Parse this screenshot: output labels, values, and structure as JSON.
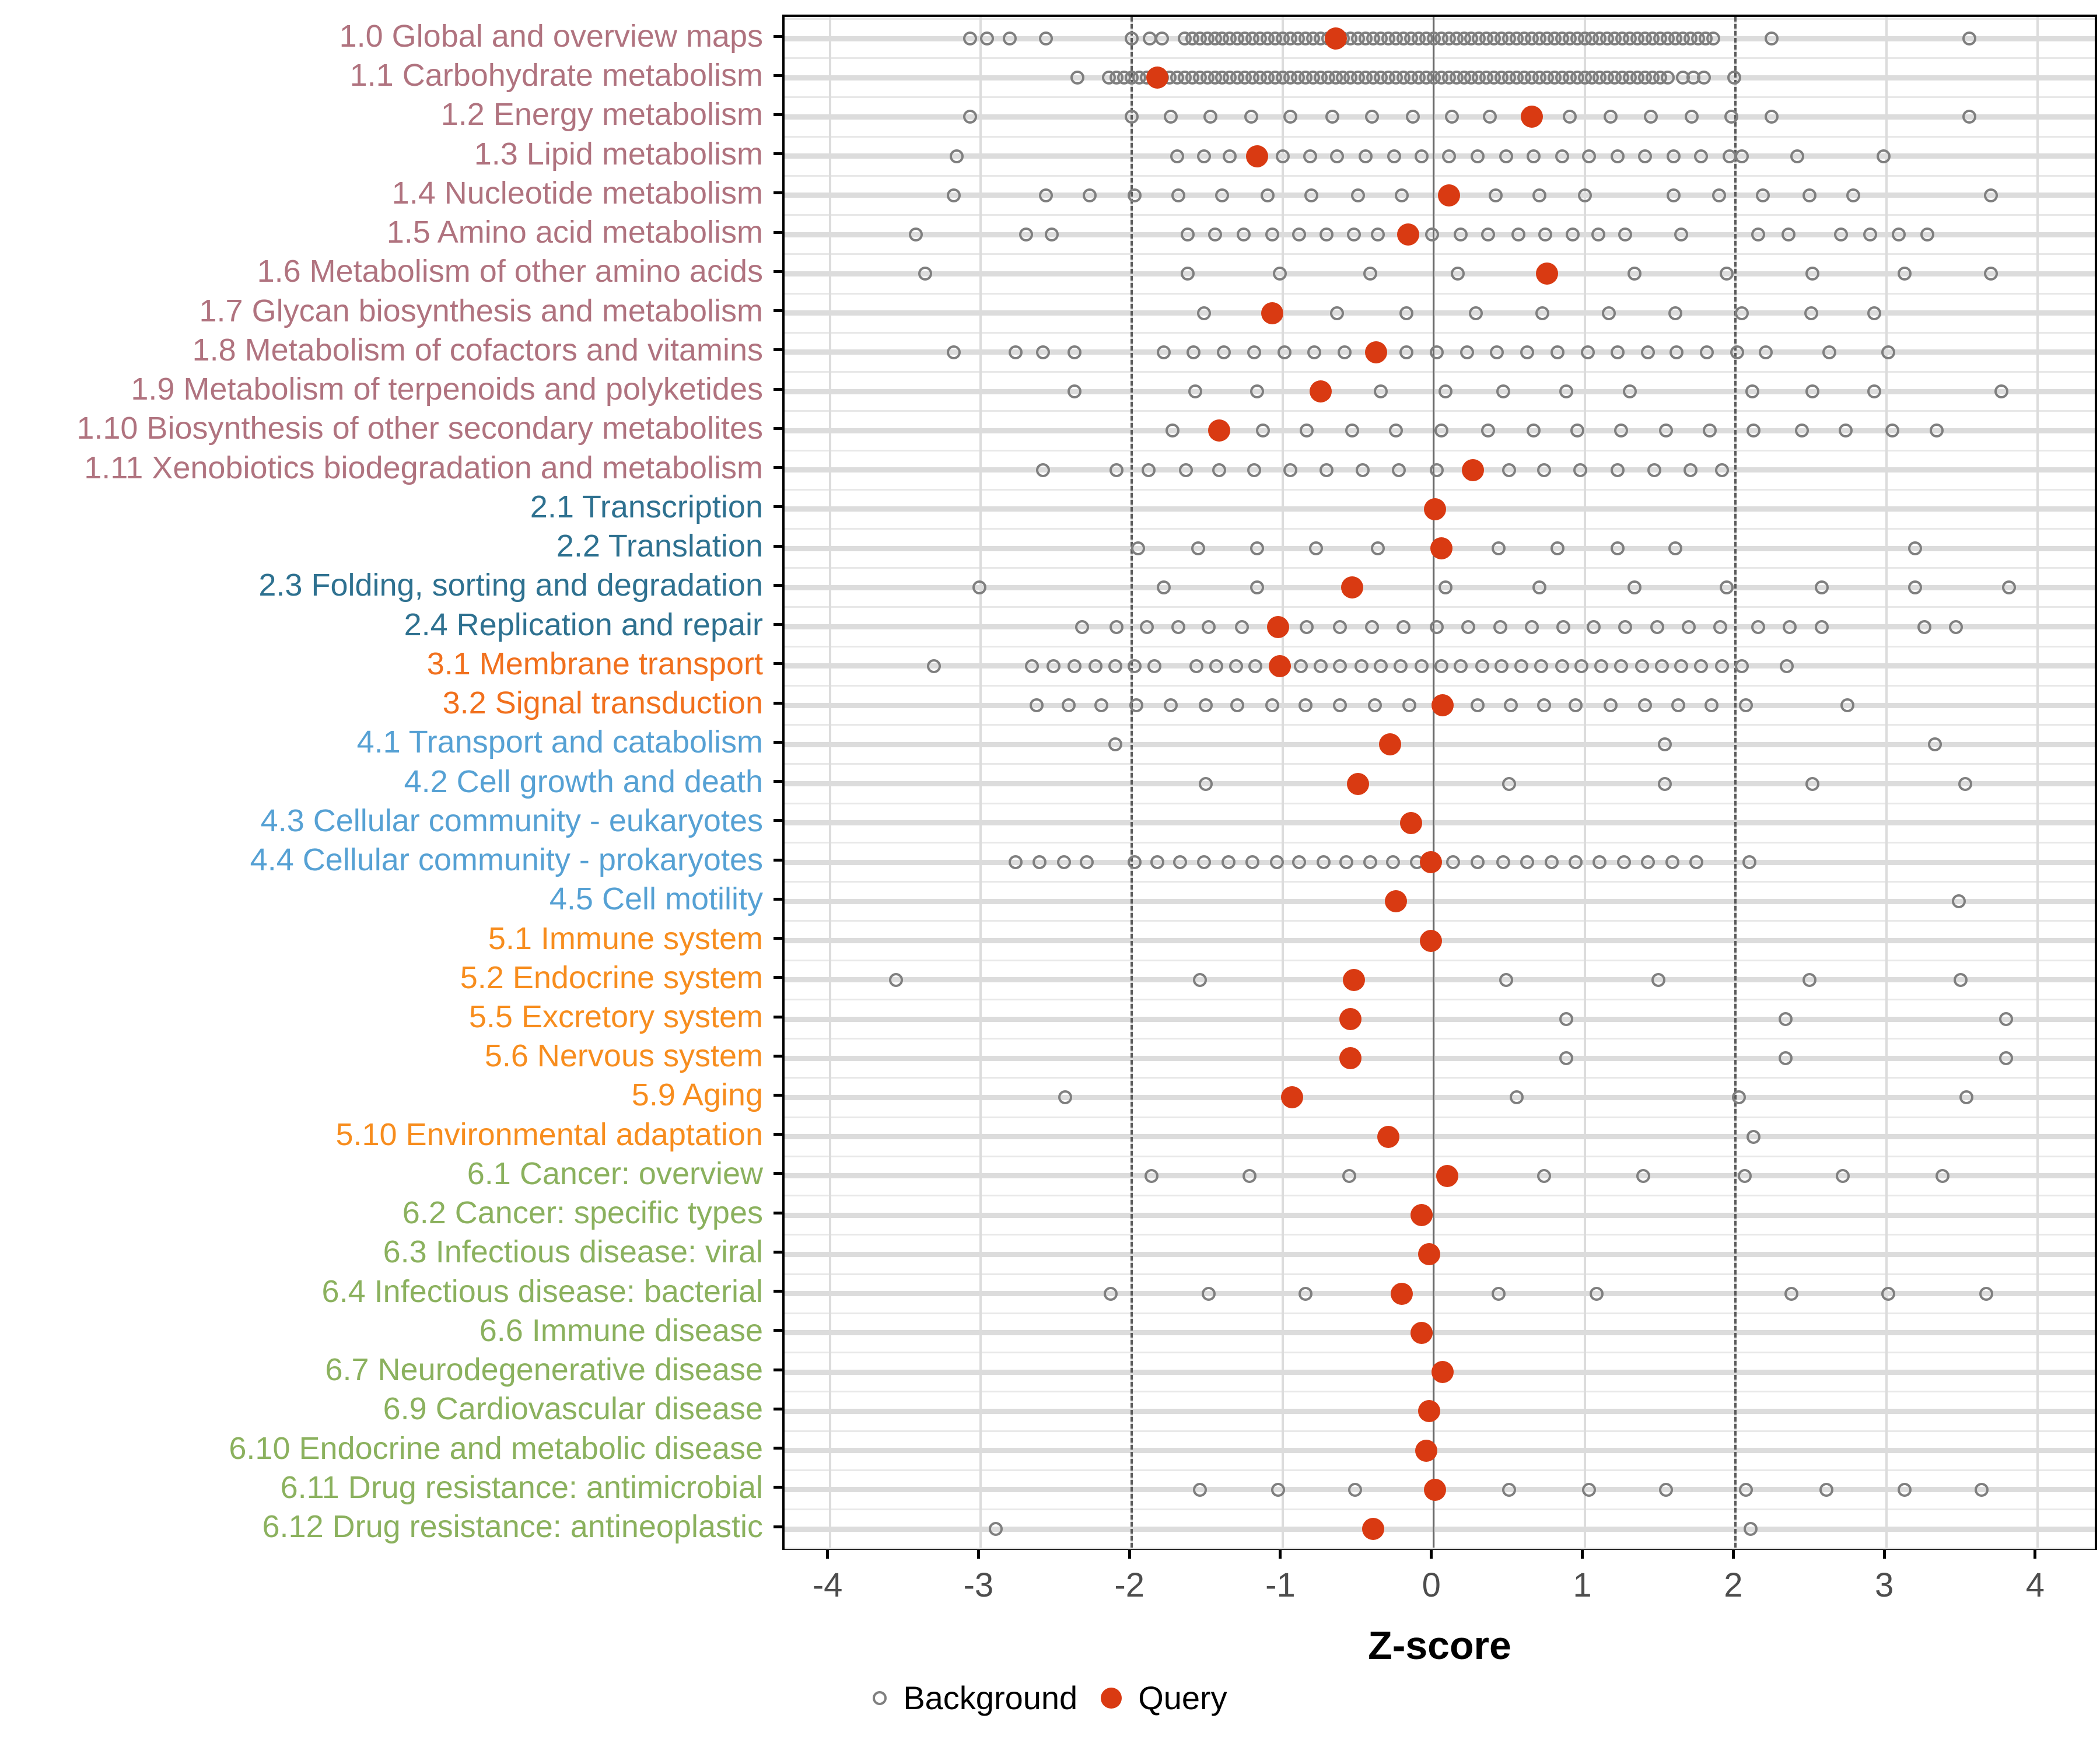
{
  "chart_data": {
    "type": "scatter",
    "variant": "dot-strip",
    "title": "",
    "xlabel": "Z-score",
    "ylabel": "",
    "xlim": [
      -4.3,
      4.41
    ],
    "x_ticks": [
      -4,
      -3,
      -2,
      -1,
      0,
      1,
      2,
      3,
      4
    ],
    "grid": "on",
    "reference_lines": {
      "solid_at": 0,
      "dotted_at": [
        -2,
        2
      ]
    },
    "legend_position": "bottom-center",
    "legend": [
      {
        "label": "Background",
        "marker": "open-circle",
        "color": "#7f7f7f"
      },
      {
        "label": "Query",
        "marker": "filled-circle",
        "color": "#d93a12"
      }
    ],
    "colors": {
      "query": "#d93a12",
      "background_stroke": "#7f7f7f",
      "grid_major": "#dcdcdc",
      "grid_minor": "#e8e8e8",
      "zero_line": "#6a6a6a",
      "dashed_line": "#5a5a5a",
      "tick_label": "#4d4d4d",
      "panel_border": "#000000"
    },
    "group_colors": {
      "1": "#b0737f",
      "2": "#2e7190",
      "3": "#f1701d",
      "4": "#56a1d4",
      "5": "#f78d1e",
      "6": "#8bb15e"
    },
    "rows": [
      {
        "label": "1.0 Global and overview maps",
        "group": "1",
        "query": -0.65,
        "background": [
          -3.07,
          -2.96,
          -2.81,
          -2.57,
          -2.0,
          -1.88,
          -1.8,
          -1.65,
          -1.6,
          -1.55,
          -1.5,
          -1.45,
          -1.4,
          -1.35,
          -1.3,
          -1.25,
          -1.2,
          -1.15,
          -1.1,
          -1.05,
          -1.0,
          -0.95,
          -0.9,
          -0.85,
          -0.8,
          -0.75,
          -0.7,
          -0.65,
          -0.6,
          -0.55,
          -0.5,
          -0.45,
          -0.4,
          -0.35,
          -0.3,
          -0.25,
          -0.2,
          -0.15,
          -0.1,
          -0.05,
          0.0,
          0.05,
          0.1,
          0.15,
          0.2,
          0.25,
          0.3,
          0.35,
          0.4,
          0.45,
          0.5,
          0.55,
          0.6,
          0.65,
          0.7,
          0.75,
          0.8,
          0.85,
          0.9,
          0.95,
          1.0,
          1.05,
          1.1,
          1.15,
          1.2,
          1.25,
          1.3,
          1.35,
          1.4,
          1.45,
          1.5,
          1.55,
          1.6,
          1.65,
          1.7,
          1.75,
          1.8,
          1.85,
          2.24,
          3.55
        ]
      },
      {
        "label": "1.1 Carbohydrate metabolism",
        "group": "1",
        "query": -1.83,
        "background": [
          -2.36,
          -2.15,
          -2.1,
          -2.05,
          -2.0,
          -1.95,
          -1.9,
          -1.85,
          -1.8,
          -1.75,
          -1.7,
          -1.65,
          -1.6,
          -1.55,
          -1.5,
          -1.45,
          -1.4,
          -1.35,
          -1.3,
          -1.25,
          -1.2,
          -1.15,
          -1.1,
          -1.05,
          -1.0,
          -0.95,
          -0.9,
          -0.85,
          -0.8,
          -0.75,
          -0.7,
          -0.65,
          -0.6,
          -0.55,
          -0.5,
          -0.45,
          -0.4,
          -0.35,
          -0.3,
          -0.25,
          -0.2,
          -0.15,
          -0.1,
          -0.05,
          0.0,
          0.05,
          0.1,
          0.15,
          0.2,
          0.25,
          0.3,
          0.35,
          0.4,
          0.45,
          0.5,
          0.55,
          0.6,
          0.65,
          0.7,
          0.75,
          0.8,
          0.85,
          0.9,
          0.95,
          1.0,
          1.05,
          1.1,
          1.15,
          1.2,
          1.25,
          1.3,
          1.35,
          1.4,
          1.45,
          1.5,
          1.55,
          1.65,
          1.72,
          1.79,
          1.99
        ]
      },
      {
        "label": "1.2 Energy metabolism",
        "group": "1",
        "query": 0.65,
        "background": [
          -3.07,
          -2.0,
          -1.74,
          -1.48,
          -1.21,
          -0.95,
          -0.67,
          -0.41,
          -0.14,
          0.12,
          0.37,
          0.9,
          1.17,
          1.44,
          1.71,
          1.97,
          2.24,
          3.55
        ]
      },
      {
        "label": "1.3 Lipid metabolism",
        "group": "1",
        "query": -1.17,
        "background": [
          -3.16,
          -1.7,
          -1.52,
          -1.35,
          -1.0,
          -0.82,
          -0.64,
          -0.45,
          -0.26,
          -0.08,
          0.1,
          0.29,
          0.48,
          0.66,
          0.85,
          1.03,
          1.22,
          1.4,
          1.59,
          1.77,
          1.96,
          2.04,
          2.41,
          2.98
        ]
      },
      {
        "label": "1.4 Nucleotide metabolism",
        "group": "1",
        "query": 0.1,
        "background": [
          -3.18,
          -2.57,
          -2.28,
          -1.98,
          -1.69,
          -1.4,
          -1.1,
          -0.81,
          -0.5,
          -0.21,
          0.41,
          0.7,
          1.0,
          1.59,
          1.89,
          2.18,
          2.49,
          2.78,
          3.69
        ]
      },
      {
        "label": "1.5 Amino acid metabolism",
        "group": "1",
        "query": -0.17,
        "background": [
          -3.43,
          -2.7,
          -2.53,
          -1.63,
          -1.45,
          -1.26,
          -1.07,
          -0.89,
          -0.71,
          -0.53,
          -0.37,
          -0.01,
          0.18,
          0.36,
          0.56,
          0.74,
          0.92,
          1.09,
          1.27,
          1.64,
          2.15,
          2.35,
          2.7,
          2.89,
          3.08,
          3.27
        ]
      },
      {
        "label": "1.6 Metabolism of other amino acids",
        "group": "1",
        "query": 0.75,
        "background": [
          -3.37,
          -1.63,
          -1.02,
          -0.42,
          0.16,
          1.33,
          1.94,
          2.51,
          3.12,
          3.69
        ]
      },
      {
        "label": "1.7 Glycan biosynthesis and metabolism",
        "group": "1",
        "query": -1.07,
        "background": [
          -1.52,
          -0.64,
          -0.18,
          0.28,
          0.72,
          1.16,
          1.6,
          2.04,
          2.5,
          2.92
        ]
      },
      {
        "label": "1.8 Metabolism of cofactors and vitamins",
        "group": "1",
        "query": -0.38,
        "background": [
          -3.18,
          -2.77,
          -2.59,
          -2.38,
          -1.79,
          -1.59,
          -1.39,
          -1.19,
          -0.99,
          -0.79,
          -0.59,
          -0.18,
          0.02,
          0.22,
          0.42,
          0.62,
          0.82,
          1.02,
          1.22,
          1.42,
          1.61,
          1.81,
          2.01,
          2.2,
          2.62,
          3.01
        ]
      },
      {
        "label": "1.9 Metabolism of terpenoids and polyketides",
        "group": "1",
        "query": -0.75,
        "background": [
          -2.38,
          -1.58,
          -1.17,
          -0.35,
          0.08,
          0.46,
          0.88,
          1.3,
          2.11,
          2.51,
          2.92,
          3.76
        ]
      },
      {
        "label": "1.10 Biosynthesis of other secondary metabolites",
        "group": "1",
        "query": -1.42,
        "background": [
          -1.73,
          -1.13,
          -0.84,
          -0.54,
          -0.25,
          0.05,
          0.36,
          0.66,
          0.95,
          1.24,
          1.54,
          1.83,
          2.12,
          2.44,
          2.73,
          3.04,
          3.33
        ]
      },
      {
        "label": "1.11 Xenobiotics biodegradation and metabolism",
        "group": "1",
        "query": 0.26,
        "background": [
          -2.59,
          -2.1,
          -1.89,
          -1.64,
          -1.42,
          -1.19,
          -0.95,
          -0.71,
          -0.47,
          -0.23,
          0.02,
          0.5,
          0.73,
          0.97,
          1.22,
          1.46,
          1.7,
          1.91
        ]
      },
      {
        "label": "2.1 Transcription",
        "group": "2",
        "query": 0.01,
        "background": []
      },
      {
        "label": "2.2 Translation",
        "group": "2",
        "query": 0.05,
        "background": [
          -1.96,
          -1.56,
          -1.17,
          -0.78,
          -0.37,
          0.43,
          0.82,
          1.22,
          1.6,
          3.19
        ]
      },
      {
        "label": "2.3 Folding, sorting and degradation",
        "group": "2",
        "query": -0.54,
        "background": [
          -3.01,
          -1.79,
          -1.17,
          0.08,
          0.7,
          1.33,
          1.94,
          2.57,
          3.19,
          3.81
        ]
      },
      {
        "label": "2.4 Replication and repair",
        "group": "2",
        "query": -1.03,
        "background": [
          -2.33,
          -2.1,
          -1.9,
          -1.69,
          -1.49,
          -1.27,
          -0.84,
          -0.62,
          -0.41,
          -0.2,
          0.02,
          0.23,
          0.44,
          0.65,
          0.86,
          1.06,
          1.27,
          1.48,
          1.69,
          1.9,
          2.15,
          2.36,
          2.57,
          3.25,
          3.46
        ]
      },
      {
        "label": "3.1 Membrane transport",
        "group": "3",
        "query": -1.02,
        "background": [
          -3.31,
          -2.66,
          -2.52,
          -2.38,
          -2.24,
          -2.11,
          -1.98,
          -1.85,
          -1.57,
          -1.44,
          -1.31,
          -1.18,
          -0.88,
          -0.75,
          -0.62,
          -0.48,
          -0.35,
          -0.22,
          -0.08,
          0.05,
          0.18,
          0.32,
          0.45,
          0.58,
          0.71,
          0.85,
          0.98,
          1.11,
          1.24,
          1.38,
          1.51,
          1.64,
          1.77,
          1.91,
          2.04,
          2.34
        ]
      },
      {
        "label": "3.2 Signal transduction",
        "group": "3",
        "query": 0.06,
        "background": [
          -2.63,
          -2.42,
          -2.2,
          -1.97,
          -1.74,
          -1.51,
          -1.3,
          -1.07,
          -0.85,
          -0.62,
          -0.39,
          -0.16,
          0.29,
          0.51,
          0.73,
          0.94,
          1.17,
          1.4,
          1.62,
          1.84,
          2.07,
          2.74
        ]
      },
      {
        "label": "4.1 Transport and catabolism",
        "group": "4",
        "query": -0.29,
        "background": [
          -2.11,
          1.53,
          3.32
        ]
      },
      {
        "label": "4.2 Cell growth and death",
        "group": "4",
        "query": -0.5,
        "background": [
          -1.51,
          0.5,
          1.53,
          2.51,
          3.52
        ]
      },
      {
        "label": "4.3 Cellular community - eukaryotes",
        "group": "4",
        "query": -0.15,
        "background": []
      },
      {
        "label": "4.4 Cellular community - prokaryotes",
        "group": "4",
        "query": -0.02,
        "background": [
          -2.77,
          -2.61,
          -2.45,
          -2.3,
          -1.98,
          -1.83,
          -1.68,
          -1.52,
          -1.36,
          -1.2,
          -1.04,
          -0.89,
          -0.73,
          -0.58,
          -0.42,
          -0.27,
          -0.11,
          0.13,
          0.29,
          0.46,
          0.62,
          0.78,
          0.94,
          1.1,
          1.26,
          1.42,
          1.58,
          1.74,
          2.09
        ]
      },
      {
        "label": "4.5 Cell motility",
        "group": "4",
        "query": -0.25,
        "background": [
          3.48
        ]
      },
      {
        "label": "5.1 Immune system",
        "group": "5",
        "query": -0.02,
        "background": []
      },
      {
        "label": "5.2 Endocrine system",
        "group": "5",
        "query": -0.53,
        "background": [
          -3.56,
          -1.55,
          0.48,
          1.49,
          2.49,
          3.49
        ]
      },
      {
        "label": "5.5 Excretory system",
        "group": "5",
        "query": -0.55,
        "background": [
          0.88,
          2.33,
          3.79
        ]
      },
      {
        "label": "5.6 Nervous system",
        "group": "5",
        "query": -0.55,
        "background": [
          0.88,
          2.33,
          3.79
        ]
      },
      {
        "label": "5.9 Aging",
        "group": "5",
        "query": -0.94,
        "background": [
          -2.44,
          0.55,
          2.02,
          3.53
        ]
      },
      {
        "label": "5.10 Environmental adaptation",
        "group": "5",
        "query": -0.3,
        "background": [
          2.12
        ]
      },
      {
        "label": "6.1 Cancer: overview",
        "group": "6",
        "query": 0.09,
        "background": [
          -1.87,
          -1.22,
          -0.56,
          0.73,
          1.39,
          2.06,
          2.71,
          3.37
        ]
      },
      {
        "label": "6.2 Cancer: specific types",
        "group": "6",
        "query": -0.08,
        "background": []
      },
      {
        "label": "6.3 Infectious disease: viral",
        "group": "6",
        "query": -0.03,
        "background": []
      },
      {
        "label": "6.4 Infectious disease: bacterial",
        "group": "6",
        "query": -0.21,
        "background": [
          -2.14,
          -1.49,
          -0.85,
          0.43,
          1.08,
          2.37,
          3.01,
          3.66
        ]
      },
      {
        "label": "6.6 Immune disease",
        "group": "6",
        "query": -0.08,
        "background": []
      },
      {
        "label": "6.7 Neurodegenerative disease",
        "group": "6",
        "query": 0.06,
        "background": []
      },
      {
        "label": "6.9 Cardiovascular disease",
        "group": "6",
        "query": -0.03,
        "background": []
      },
      {
        "label": "6.10 Endocrine and metabolic disease",
        "group": "6",
        "query": -0.05,
        "background": []
      },
      {
        "label": "6.11 Drug resistance: antimicrobial",
        "group": "6",
        "query": 0.01,
        "background": [
          -1.55,
          -1.03,
          -0.52,
          0.5,
          1.03,
          1.54,
          2.07,
          2.6,
          3.12,
          3.63
        ]
      },
      {
        "label": "6.12 Drug resistance: antineoplastic",
        "group": "6",
        "query": -0.4,
        "background": [
          -2.9,
          2.1
        ]
      }
    ]
  }
}
